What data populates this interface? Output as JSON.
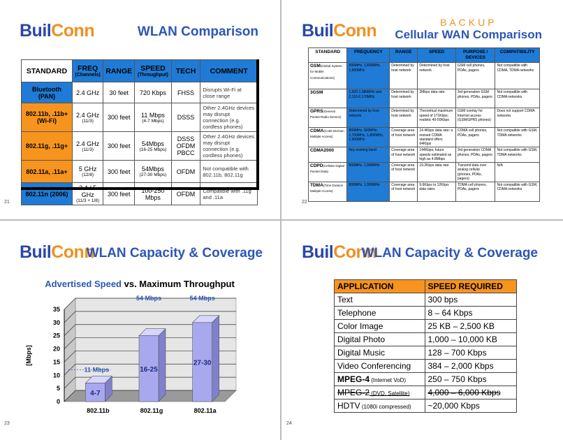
{
  "logo": {
    "part1": "Buil",
    "part2": "Conn"
  },
  "slide1": {
    "title": "WLAN Comparison",
    "page": "21",
    "headers": [
      {
        "main": "STANDARD",
        "sub": ""
      },
      {
        "main": "FREQ",
        "sub": "(Channels)"
      },
      {
        "main": "RANGE",
        "sub": ""
      },
      {
        "main": "SPEED",
        "sub": "(Throughput)"
      },
      {
        "main": "TECH",
        "sub": ""
      },
      {
        "main": "COMMENT",
        "sub": ""
      }
    ],
    "rows": [
      {
        "std": "Bluetooth (PAN)",
        "freq": "2.4 GHz",
        "freq_sub": "",
        "range": "30 feet",
        "speed": "720 Kbps",
        "speed_sub": "",
        "tech": "FHSS",
        "comment": "Disrupts Wi-Fi at close range"
      },
      {
        "std": "802.11b, .11b+ (Wi-Fi)",
        "freq": "2.4 GHz",
        "freq_sub": "(11/3)",
        "range": "300 feet",
        "speed": "11 Mbps",
        "speed_sub": "(4-7 Mbps)",
        "tech": "DSSS",
        "comment": "Other 2.4GHz devices may disrupt connection (e.g. cordless phones)"
      },
      {
        "std": "802.11g, .11g+",
        "freq": "2.4 GHz",
        "freq_sub": "(11/3)",
        "range": "300 feet",
        "speed": "54Mbps",
        "speed_sub": "(16-25 Mbps)",
        "tech": "DSSS OFDM PBCC",
        "comment": "Other 2.4GHz devices may disrupt connection (e.g. cordless phones)"
      },
      {
        "std": "802.11a, .11a+",
        "freq": "5 GHz",
        "freq_sub": "(12/8)",
        "range": "300 feet",
        "speed": "54Mbps",
        "speed_sub": "(27-30 Mbps)",
        "tech": "OFDM",
        "comment": "Not compatible with 802.11b, 802.11g"
      },
      {
        "std": "802.11n (2006)",
        "freq": "2.4 / 5 GHz",
        "freq_sub": "(11/3 + 1/8)",
        "range": "300 feet",
        "speed": "100-250 Mbps",
        "speed_sub": "",
        "tech": "OFDM",
        "comment": "Compatible with .11g and .11a"
      }
    ]
  },
  "slide2": {
    "backup": "BACKUP",
    "title": "Cellular WAN Comparison",
    "page": "22",
    "headers": [
      "STANDARD",
      "FREQUENCY",
      "RANGE",
      "SPEED",
      "PURPOSE / DEVICES",
      "COMPATIBILITY"
    ],
    "rows": [
      {
        "std": "GSM",
        "std_sub": "(Global System for Mobile Communications)",
        "freq": "900MHz, 1,800MHz, 1,900MHz",
        "range": "Determined by host network",
        "speed": "Determined by host network",
        "purpose": "GSM cell phones, PDAs, pagers",
        "compat": "Not compatible with CDMA, TDMA networks"
      },
      {
        "std": "3GSM",
        "std_sub": "",
        "freq": "1,920-1,980MHz and 2,110-2,170MHz",
        "range": "Determined by host network",
        "speed": "2Mbps data rate",
        "purpose": "3rd generation GSM phones, PDAs, pagers",
        "compat": "Not compatible with CDMA networks"
      },
      {
        "std": "GPRS",
        "std_sub": "(General Packet Radio Service)",
        "freq": "Determined by host network",
        "range": "Determined by host network",
        "speed": "Theoretical maximum speed of 171Kbps; realistic 40-50Kbps",
        "purpose": "GSM overlay for Internet access (GSM/GPRS phones)",
        "compat": "Does not support CDMA networks"
      },
      {
        "std": "CDMA",
        "std_sub": "(Code Division Multiple Access)",
        "freq": "800MHz, 900MHz, 1,700MHz, 1,800MHz, 1,900MHz",
        "range": "Coverage area of host network",
        "speed": "14.4Kbps data rate; a revised CDMA standard offers 64Kbps",
        "purpose": "CDMA cell phones, PDAs, pagers",
        "compat": "Not compatible with GSM, TDMA networks"
      },
      {
        "std": "CDMA2000",
        "std_sub": "",
        "freq": "Any existing band",
        "range": "Coverage area of host network",
        "speed": "144Kbps; future speeds estimated as high as 4.8Mbps",
        "purpose": "3rd generation CDMA phones, PDAs, pagers",
        "compat": "Not compatible with GSM, TDMA networks"
      },
      {
        "std": "CDPD",
        "std_sub": "(Cellular Digital Packet Data)",
        "freq": "800MHz, 1,900MHz",
        "range": "Coverage area of host network",
        "speed": "19.2Kbps data rate",
        "purpose": "Transmit data over analog cellular (phones, PDAs, pagers)",
        "compat": "N/A"
      },
      {
        "std": "TDMA",
        "std_sub": "(Time Division Multiple Access)",
        "freq": "800MHz, 1,900MHz",
        "range": "Coverage area of host network",
        "speed": "9.6Kbps to 12Kbps data rates",
        "purpose": "TDMA cell phones, PDAs, pagers",
        "compat": "Not compatible with GSM, CDMA networks"
      }
    ]
  },
  "slide3": {
    "title": "WLAN Capacity & Coverage",
    "page": "23",
    "chart_title_a": "Advertised Speed",
    "chart_title_b": " vs. Maximum Throughput"
  },
  "chart_data": {
    "type": "bar",
    "categories": [
      "802.11b",
      "802.11g",
      "802.11a"
    ],
    "values": [
      7,
      25,
      30
    ],
    "bar_labels": [
      "4-7",
      "16-25",
      "27-30"
    ],
    "annotations": [
      "11 Mbps",
      "54 Mbps",
      "54 Mbps"
    ],
    "ylabel": "[Mbps]",
    "ylim": [
      0,
      35
    ],
    "yticks": [
      0,
      5,
      10,
      15,
      20,
      25,
      30,
      35
    ],
    "grid": true,
    "bar_color": "#a8a8ee"
  },
  "slide4": {
    "title": "WLAN Capacity & Coverage",
    "page": "24",
    "headers": [
      "APPLICATION",
      "SPEED REQUIRED"
    ],
    "rows": [
      {
        "app": "Text",
        "sub": "",
        "speed": "300 bps",
        "style": ""
      },
      {
        "app": "Telephone",
        "sub": "",
        "speed": "8 – 64 Kbps",
        "style": ""
      },
      {
        "app": "Color Image",
        "sub": "",
        "speed": "25 KB – 2,500 KB",
        "style": ""
      },
      {
        "app": "Digital Photo",
        "sub": "",
        "speed": "1,000 – 10,000 KB",
        "style": ""
      },
      {
        "app": "Digital Music",
        "sub": "",
        "speed": "128 – 700 Kbps",
        "style": ""
      },
      {
        "app": "Video Conferencing",
        "sub": "",
        "speed": "384 – 2,000 Kbps",
        "style": ""
      },
      {
        "app": "MPEG-4",
        "sub": " (Internet VoD)",
        "speed": "250 – 750 Kbps",
        "style": "mpeg"
      },
      {
        "app": "MPEG-2",
        "sub": " (DVD, Satellite)",
        "speed": "4,000 – 6,000 Kbps",
        "style": "strike"
      },
      {
        "app": "HDTV",
        "sub": " (1080i compressed)",
        "speed": "~20,000 Kbps",
        "style": ""
      }
    ]
  }
}
